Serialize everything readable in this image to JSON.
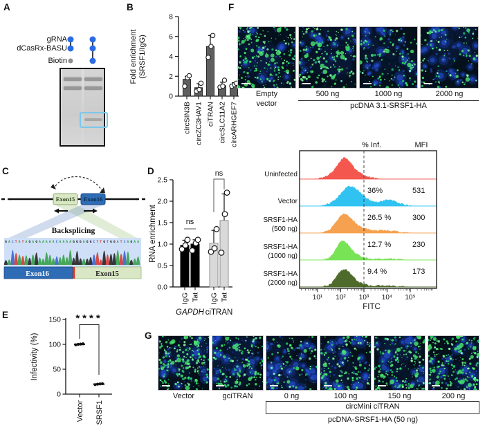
{
  "panels": {
    "A": {
      "label": "A",
      "row_labels": [
        "gRNA",
        "dCasRx-BASU",
        "Biotin"
      ],
      "lanes": [
        {
          "dots": [
            "blue",
            "blue",
            "gray"
          ],
          "connect": [
            0,
            1
          ]
        },
        {
          "dots": [
            "blue",
            "blue",
            "blue"
          ],
          "connect": [
            0,
            2
          ]
        }
      ],
      "colors": {
        "dot_blue": "#2b6ce5",
        "dot_gray": "#8f8f8f",
        "gel_bg": "#d9d9d9",
        "band": "#8d8d8d",
        "highlight": "#7cc7ea"
      }
    },
    "B": {
      "label": "B",
      "chart": {
        "type": "bar",
        "ylabel_lines": [
          "Fold enrichment",
          "(SRSF1/IgG)"
        ],
        "ylim": [
          0,
          8
        ],
        "yticks": [
          0,
          2,
          4,
          6,
          8
        ],
        "categories": [
          "circSIN3B",
          "circZC3HAV1",
          "ciTRAN",
          "circSLC11A2",
          "circARHGEF7"
        ],
        "values": [
          1.7,
          0.85,
          5.0,
          1.05,
          1.2
        ],
        "errors": [
          0.3,
          0.4,
          1.1,
          0.35,
          0.15
        ],
        "points": [
          [
            1.0,
            1.85,
            2.05
          ],
          [
            0.5,
            0.65,
            1.3
          ],
          [
            3.9,
            5.0,
            6.1
          ],
          [
            0.9,
            1.0,
            1.6
          ],
          [
            1.0,
            1.15,
            1.3
          ]
        ],
        "bar_color": "#5f5f5f"
      }
    },
    "C": {
      "label": "C",
      "exon_left": "Exon15",
      "exon_right": "Exon16",
      "backsplicing": "Backsplicing",
      "junction_left": "Exon16",
      "junction_right": "Exon15",
      "sequence": "GACTATAGAGAAAAACAAAAGGGAGGCTTGTGGATCAGAA",
      "base_colors": {
        "A": "#2e9e40",
        "C": "#2f5fd0",
        "G": "#1a1a1a",
        "T": "#d92f26"
      },
      "colors": {
        "exon15_fill": "#d9e7c4",
        "exon15_stroke": "#8aa86b",
        "exon16_fill": "#2e6cb5",
        "exon16_stroke": "#1b4a86",
        "junction_line": "#e62e1f",
        "chromatogram_bg": "#cfdff7"
      }
    },
    "D": {
      "label": "D",
      "chart": {
        "type": "bar",
        "ylabel": "RNA enrichment",
        "ylim": [
          0,
          2.5
        ],
        "yticks": [
          0,
          0.5,
          1,
          1.5,
          2,
          2.5
        ],
        "groups": [
          {
            "name": "GAPDH",
            "italic": true,
            "sig": "ns",
            "bars": [
              {
                "label": "IgG",
                "value": 0.97,
                "error": 0.12,
                "color": "#000000",
                "stroke": "#000000",
                "points": [
                  0.88,
                  0.97,
                  1.1
                ]
              },
              {
                "label": "Tat",
                "value": 1.0,
                "error": 0.1,
                "color": "#000000",
                "stroke": "#000000",
                "points": [
                  0.85,
                  1.02,
                  1.1
                ]
              }
            ]
          },
          {
            "name": "ciTRAN",
            "italic": false,
            "sig": "ns",
            "bars": [
              {
                "label": "IgG",
                "value": 1.02,
                "error": 0.3,
                "color": "#d9d9d9",
                "stroke": "#909090",
                "points": [
                  0.82,
                  0.9,
                  1.35
                ]
              },
              {
                "label": "Tat",
                "value": 1.55,
                "error": 0.62,
                "color": "#d9d9d9",
                "stroke": "#909090",
                "points": [
                  0.8,
                  1.7,
                  2.2
                ]
              }
            ]
          }
        ]
      }
    },
    "E": {
      "label": "E",
      "chart": {
        "type": "scatter",
        "ylabel": "Infectivity (%)",
        "ylim": [
          0,
          150
        ],
        "yticks": [
          0,
          50,
          100,
          150
        ],
        "categories": [
          "Vector",
          "SRSF1"
        ],
        "means": [
          100,
          20
        ],
        "points": [
          [
            99,
            100,
            100.5,
            101
          ],
          [
            19,
            20,
            20.5,
            21
          ]
        ],
        "significance": "****"
      }
    },
    "F": {
      "label": "F",
      "micrographs": [
        {
          "caption": "Empty vector",
          "caption_lines": [
            "Empty",
            "vector"
          ],
          "green_level": 0.95
        },
        {
          "caption": "500 ng",
          "green_level": 0.72
        },
        {
          "caption": "1000 ng",
          "green_level": 0.42
        },
        {
          "caption": "2000 ng",
          "green_level": 0.3
        }
      ],
      "group_label": "pcDNA 3.1-SRSF1-HA",
      "flow": {
        "type": "flow-histogram",
        "col_headers": [
          "% Inf.",
          "MFI"
        ],
        "xlabel": "FITC",
        "xtick_labels": [
          "10¹",
          "10²",
          "10³",
          "10⁴",
          "10⁵"
        ],
        "gate_decade": 3,
        "rows": [
          {
            "label_lines": [
              "Uninfected"
            ],
            "color": "#f3574e",
            "pct": "",
            "mfi": "",
            "peaks": [
              {
                "c": 2.15,
                "s": 0.28,
                "h": 0.62
              },
              {
                "c": 2.45,
                "s": 0.5,
                "h": 0.3
              },
              {
                "c": 1.6,
                "s": 0.3,
                "h": 0.12
              }
            ]
          },
          {
            "label_lines": [
              "Vector"
            ],
            "color": "#30c3f1",
            "pct": "36%",
            "mfi": "531",
            "peaks": [
              {
                "c": 2.35,
                "s": 0.35,
                "h": 0.6
              },
              {
                "c": 2.8,
                "s": 0.45,
                "h": 0.35
              },
              {
                "c": 1.8,
                "s": 0.3,
                "h": 0.12
              },
              {
                "c": 3.95,
                "s": 0.3,
                "h": 0.17
              },
              {
                "c": 4.3,
                "s": 0.35,
                "h": 0.12
              }
            ]
          },
          {
            "label_lines": [
              "SRSF1-HA",
              "(500 ng)"
            ],
            "color": "#f6a14f",
            "pct": "26.5 %",
            "mfi": "300",
            "peaks": [
              {
                "c": 2.1,
                "s": 0.32,
                "h": 0.62
              },
              {
                "c": 2.55,
                "s": 0.45,
                "h": 0.28
              },
              {
                "c": 3.9,
                "s": 0.5,
                "h": 0.11
              }
            ]
          },
          {
            "label_lines": [
              "SRSF1-HA",
              "(1000 ng)"
            ],
            "color": "#79e356",
            "pct": "12.7 %",
            "mfi": "230",
            "peaks": [
              {
                "c": 2.05,
                "s": 0.28,
                "h": 0.65
              },
              {
                "c": 2.45,
                "s": 0.4,
                "h": 0.25
              },
              {
                "c": 3.9,
                "s": 0.5,
                "h": 0.05
              }
            ]
          },
          {
            "label_lines": [
              "SRSF1-HA",
              "(2000 ng)"
            ],
            "color": "#4e6b2b",
            "pct": "9.4 %",
            "mfi": "173",
            "peaks": [
              {
                "c": 2.1,
                "s": 0.3,
                "h": 0.6
              },
              {
                "c": 2.5,
                "s": 0.4,
                "h": 0.22
              },
              {
                "c": 3.85,
                "s": 0.55,
                "h": 0.05
              }
            ]
          }
        ]
      }
    },
    "G": {
      "label": "G",
      "micrographs": [
        {
          "caption": "Vector",
          "green_level": 0.9
        },
        {
          "caption": "gciTRAN",
          "green_level": 0.6
        },
        {
          "caption": "0 ng",
          "green_level": 0.3
        },
        {
          "caption": "100 ng",
          "green_level": 0.55
        },
        {
          "caption": "150 ng",
          "green_level": 0.7
        },
        {
          "caption": "200 ng",
          "green_level": 0.85
        }
      ],
      "bracket1_label": "circMini ciTRAN",
      "bracket2_label": "pcDNA-SRSF1-HA (50 ng)"
    }
  },
  "chart_data": [
    {
      "panel": "B",
      "type": "bar",
      "ylabel": "Fold enrichment (SRSF1/IgG)",
      "ylim": [
        0,
        8
      ],
      "categories": [
        "circSIN3B",
        "circZC3HAV1",
        "ciTRAN",
        "circSLC11A2",
        "circARHGEF7"
      ],
      "values": [
        1.7,
        0.85,
        5.0,
        1.05,
        1.2
      ]
    },
    {
      "panel": "D",
      "type": "bar",
      "ylabel": "RNA enrichment",
      "ylim": [
        0,
        2.5
      ],
      "categories": [
        "GAPDH IgG",
        "GAPDH Tat",
        "ciTRAN IgG",
        "ciTRAN Tat"
      ],
      "values": [
        0.97,
        1.0,
        1.02,
        1.55
      ],
      "significance": [
        "ns",
        "ns"
      ]
    },
    {
      "panel": "E",
      "type": "scatter",
      "ylabel": "Infectivity (%)",
      "ylim": [
        0,
        150
      ],
      "categories": [
        "Vector",
        "SRSF1"
      ],
      "values": [
        100,
        20
      ],
      "significance": "****"
    },
    {
      "panel": "F-flow",
      "type": "flow-histogram",
      "xlabel": "FITC",
      "rows": [
        "Uninfected",
        "Vector",
        "SRSF1-HA (500 ng)",
        "SRSF1-HA (1000 ng)",
        "SRSF1-HA (2000 ng)"
      ],
      "pct_infected": [
        null,
        36,
        26.5,
        12.7,
        9.4
      ],
      "mfi": [
        null,
        531,
        300,
        230,
        173
      ]
    }
  ]
}
